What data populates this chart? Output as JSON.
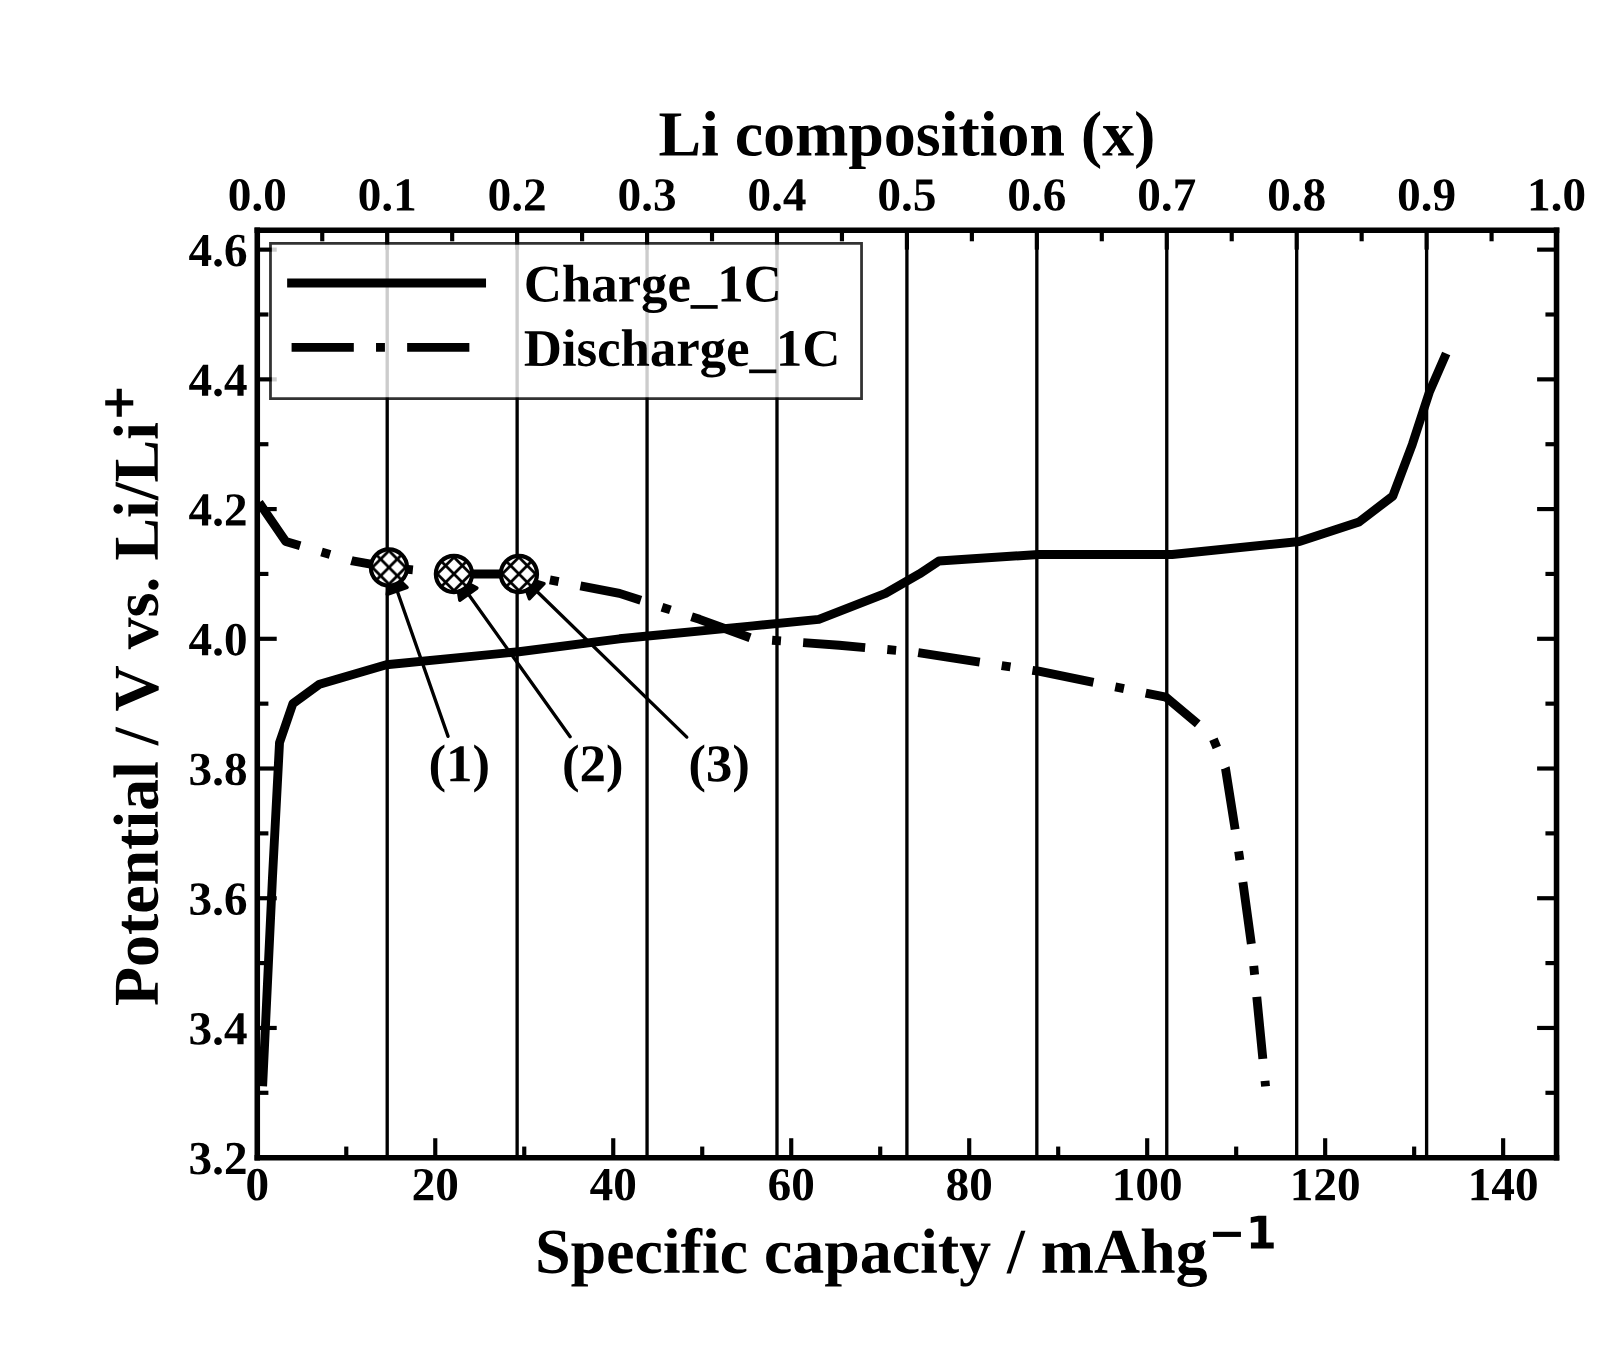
{
  "chart_data": {
    "type": "line",
    "xlabel": "Specific capacity / mAhg$^{−1}$",
    "ylabel": "Potential / V vs. Li/Li$^{+}$",
    "x2label": "Li composition (x)",
    "xlim": [
      0,
      146
    ],
    "xticks": [
      0,
      20,
      40,
      60,
      80,
      100,
      120,
      140
    ],
    "x2lim": [
      0.0,
      1.0
    ],
    "x2ticks": [
      {
        "value": 0.0,
        "label": "0.0"
      },
      {
        "value": 0.1,
        "label": "0.1"
      },
      {
        "value": 0.2,
        "label": "0.2"
      },
      {
        "value": 0.3,
        "label": "0.3"
      },
      {
        "value": 0.4,
        "label": "0.4"
      },
      {
        "value": 0.5,
        "label": "0.5"
      },
      {
        "value": 0.6,
        "label": "0.6"
      },
      {
        "value": 0.7,
        "label": "0.7"
      },
      {
        "value": 0.8,
        "label": "0.8"
      },
      {
        "value": 0.9,
        "label": "0.9"
      },
      {
        "value": 1.0,
        "label": "1.0"
      }
    ],
    "ylim": [
      3.2,
      4.63
    ],
    "yticks": [
      3.2,
      3.4,
      3.6,
      3.8,
      {
        "value": 4.0,
        "label": "4.0"
      },
      4.2,
      4.4,
      4.6
    ],
    "grid": "x",
    "legend": "top left",
    "series": [
      {
        "name": "Charge_1C",
        "color": "#000000",
        "line_style": "solid",
        "marker": "none",
        "x": [
          0.6,
          1.7,
          2.5,
          4.0,
          7.0,
          14.5,
          29.4,
          40.7,
          55.7,
          63.1,
          70.6,
          74.4,
          76.6,
          87.8,
          102.8,
          117.1,
          123.8,
          127.6,
          129.8,
          131.7,
          133.6
        ],
        "values": [
          3.31,
          3.63,
          3.84,
          3.9,
          3.93,
          3.96,
          3.98,
          4.0,
          4.02,
          4.03,
          4.07,
          4.1,
          4.12,
          4.13,
          4.13,
          4.15,
          4.18,
          4.22,
          4.3,
          4.38,
          4.44
        ]
      },
      {
        "name": "Discharge_1C",
        "color": "#000000",
        "line_style": "dashdot",
        "marker": "none",
        "x": [
          0.2,
          3.2,
          10.7,
          14.8,
          22.1,
          29.4,
          40.7,
          49.7,
          55.7,
          65.4,
          73.6,
          87.8,
          102.1,
          107.3,
          108.8,
          110.3,
          111.8,
          113.3
        ],
        "values": [
          4.21,
          4.15,
          4.12,
          4.11,
          4.1,
          4.1,
          4.07,
          4.03,
          4.0,
          3.99,
          3.98,
          3.95,
          3.91,
          3.85,
          3.8,
          3.67,
          3.52,
          3.31
        ]
      },
      {
        "type": "scatter",
        "color": "#000000",
        "marker": "circle",
        "x": [
          14.8,
          22.1,
          29.4
        ],
        "values": [
          4.11,
          4.1,
          4.1
        ]
      }
    ],
    "annotations": [
      {
        "text": "(1)",
        "x": 14.8,
        "y": 4.11
      },
      {
        "text": "(2)",
        "x": 22.1,
        "y": 4.1
      },
      {
        "text": "(3)",
        "x": 29.4,
        "y": 4.1
      }
    ]
  }
}
